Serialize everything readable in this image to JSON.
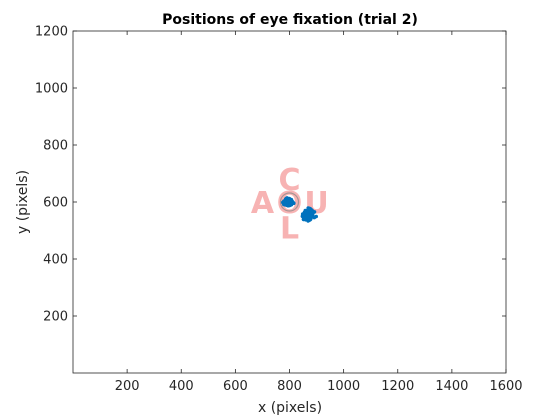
{
  "chart_data": {
    "type": "scatter",
    "title": "Positions of eye fixation (trial 2)",
    "xlabel": "x (pixels)",
    "ylabel": "y (pixels)",
    "xlim": [
      0,
      1600
    ],
    "ylim": [
      0,
      1200
    ],
    "xticks": [
      200,
      400,
      600,
      800,
      1000,
      1200,
      1400,
      1600
    ],
    "yticks": [
      200,
      400,
      600,
      800,
      1000,
      1200
    ],
    "grid": false,
    "colors": {
      "fixation": "#0072BD",
      "target": "#f7b3b3",
      "center_marker": "#888888"
    },
    "target_letters": [
      {
        "text": "C",
        "x": 800,
        "y": 680
      },
      {
        "text": "A",
        "x": 700,
        "y": 600
      },
      {
        "text": "O",
        "x": 800,
        "y": 600
      },
      {
        "text": "U",
        "x": 900,
        "y": 600
      },
      {
        "text": "L",
        "x": 800,
        "y": 510
      }
    ],
    "center_marker": {
      "x": 800,
      "y": 600
    },
    "series": [
      {
        "clusters": [
          {
            "cx": 795,
            "cy": 600,
            "spread_x": 22,
            "spread_y": 18,
            "n": 260
          },
          {
            "cx": 870,
            "cy": 555,
            "spread_x": 28,
            "spread_y": 24,
            "n": 300
          }
        ]
      }
    ]
  }
}
